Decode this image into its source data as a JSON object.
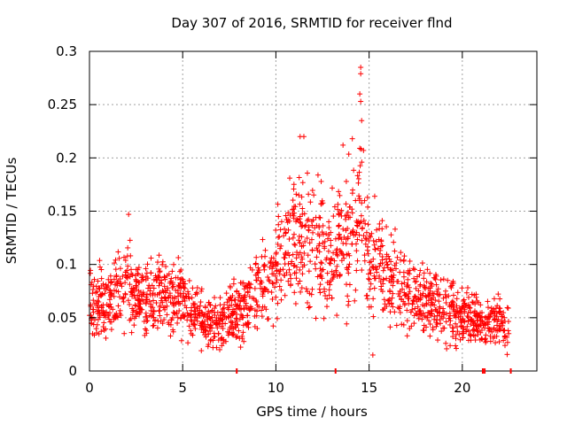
{
  "chart_data": {
    "type": "scatter",
    "title": "Day 307 of 2016, SRMTID for receiver flnd",
    "xlabel": "GPS time / hours",
    "ylabel": "SRMTID / TECUs",
    "xlim": [
      0,
      24
    ],
    "ylim": [
      0,
      0.3
    ],
    "xticks": [
      0,
      5,
      10,
      15,
      20
    ],
    "xtick_labels": [
      "0",
      "5",
      "10",
      "15",
      "20"
    ],
    "yticks": [
      0,
      0.05,
      0.1,
      0.15,
      0.2,
      0.25,
      0.3
    ],
    "ytick_labels": [
      "0",
      "0.05",
      "0.1",
      "0.15",
      "0.2",
      "0.25",
      "0.3"
    ],
    "grid": true,
    "marker": "plus",
    "color": "#ff0000",
    "sample_count": 1800,
    "trend": {
      "hours": [
        0,
        1,
        2,
        3,
        4,
        5,
        6,
        7,
        8,
        9,
        10,
        11,
        12,
        13,
        14,
        14.5,
        15,
        16,
        17,
        18,
        19,
        20,
        21,
        22,
        22.5
      ],
      "mean_tecu": [
        0.065,
        0.065,
        0.08,
        0.07,
        0.07,
        0.068,
        0.05,
        0.045,
        0.055,
        0.075,
        0.095,
        0.12,
        0.12,
        0.11,
        0.13,
        0.14,
        0.11,
        0.09,
        0.075,
        0.07,
        0.06,
        0.05,
        0.045,
        0.045,
        0.04
      ]
    },
    "highlighted_points": [
      {
        "x": 14.55,
        "y": 0.285
      },
      {
        "x": 14.55,
        "y": 0.279
      },
      {
        "x": 14.5,
        "y": 0.26
      },
      {
        "x": 14.55,
        "y": 0.253
      },
      {
        "x": 14.6,
        "y": 0.235
      },
      {
        "x": 11.3,
        "y": 0.22
      },
      {
        "x": 11.5,
        "y": 0.22
      },
      {
        "x": 13.6,
        "y": 0.212
      },
      {
        "x": 14.1,
        "y": 0.218
      },
      {
        "x": 14.5,
        "y": 0.209
      },
      {
        "x": 14.7,
        "y": 0.207
      },
      {
        "x": 15.3,
        "y": 0.164
      },
      {
        "x": 2.1,
        "y": 0.147
      },
      {
        "x": 15.2,
        "y": 0.015
      }
    ],
    "gap_markers_hours": [
      7.9,
      13.2,
      21.1,
      21.2,
      22.6
    ]
  }
}
